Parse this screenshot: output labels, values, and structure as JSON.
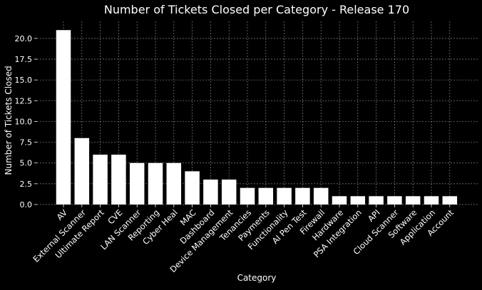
{
  "chart_data": {
    "type": "bar",
    "title": "Number of Tickets Closed per Category - Release 170",
    "xlabel": "Category",
    "ylabel": "Number of Tickets Closed",
    "categories": [
      "AV",
      "External Scanner",
      "Ultimate Report",
      "CVE",
      "LAN Scanner",
      "Reporting",
      "Cyber Heal",
      "MAC",
      "Dashboard",
      "Device Management",
      "Tenancies",
      "Payments",
      "Functionality",
      "AI Pen Test",
      "Firewall",
      "Hardware",
      "PSA Integration",
      "API",
      "Cloud Scanner",
      "Software",
      "Application",
      "Account"
    ],
    "values": [
      21,
      8,
      6,
      6,
      5,
      5,
      5,
      4,
      3,
      3,
      2,
      2,
      2,
      2,
      2,
      1,
      1,
      1,
      1,
      1,
      1,
      1
    ],
    "ylim": [
      0,
      22.05
    ],
    "yticks": [
      "0.0",
      "2.5",
      "5.0",
      "7.5",
      "10.0",
      "12.5",
      "15.0",
      "17.5",
      "20.0"
    ],
    "grid": true,
    "colors": {
      "background": "#000000",
      "bar": "#ffffff",
      "grid": "#b0b0b0",
      "text": "#ffffff"
    }
  }
}
